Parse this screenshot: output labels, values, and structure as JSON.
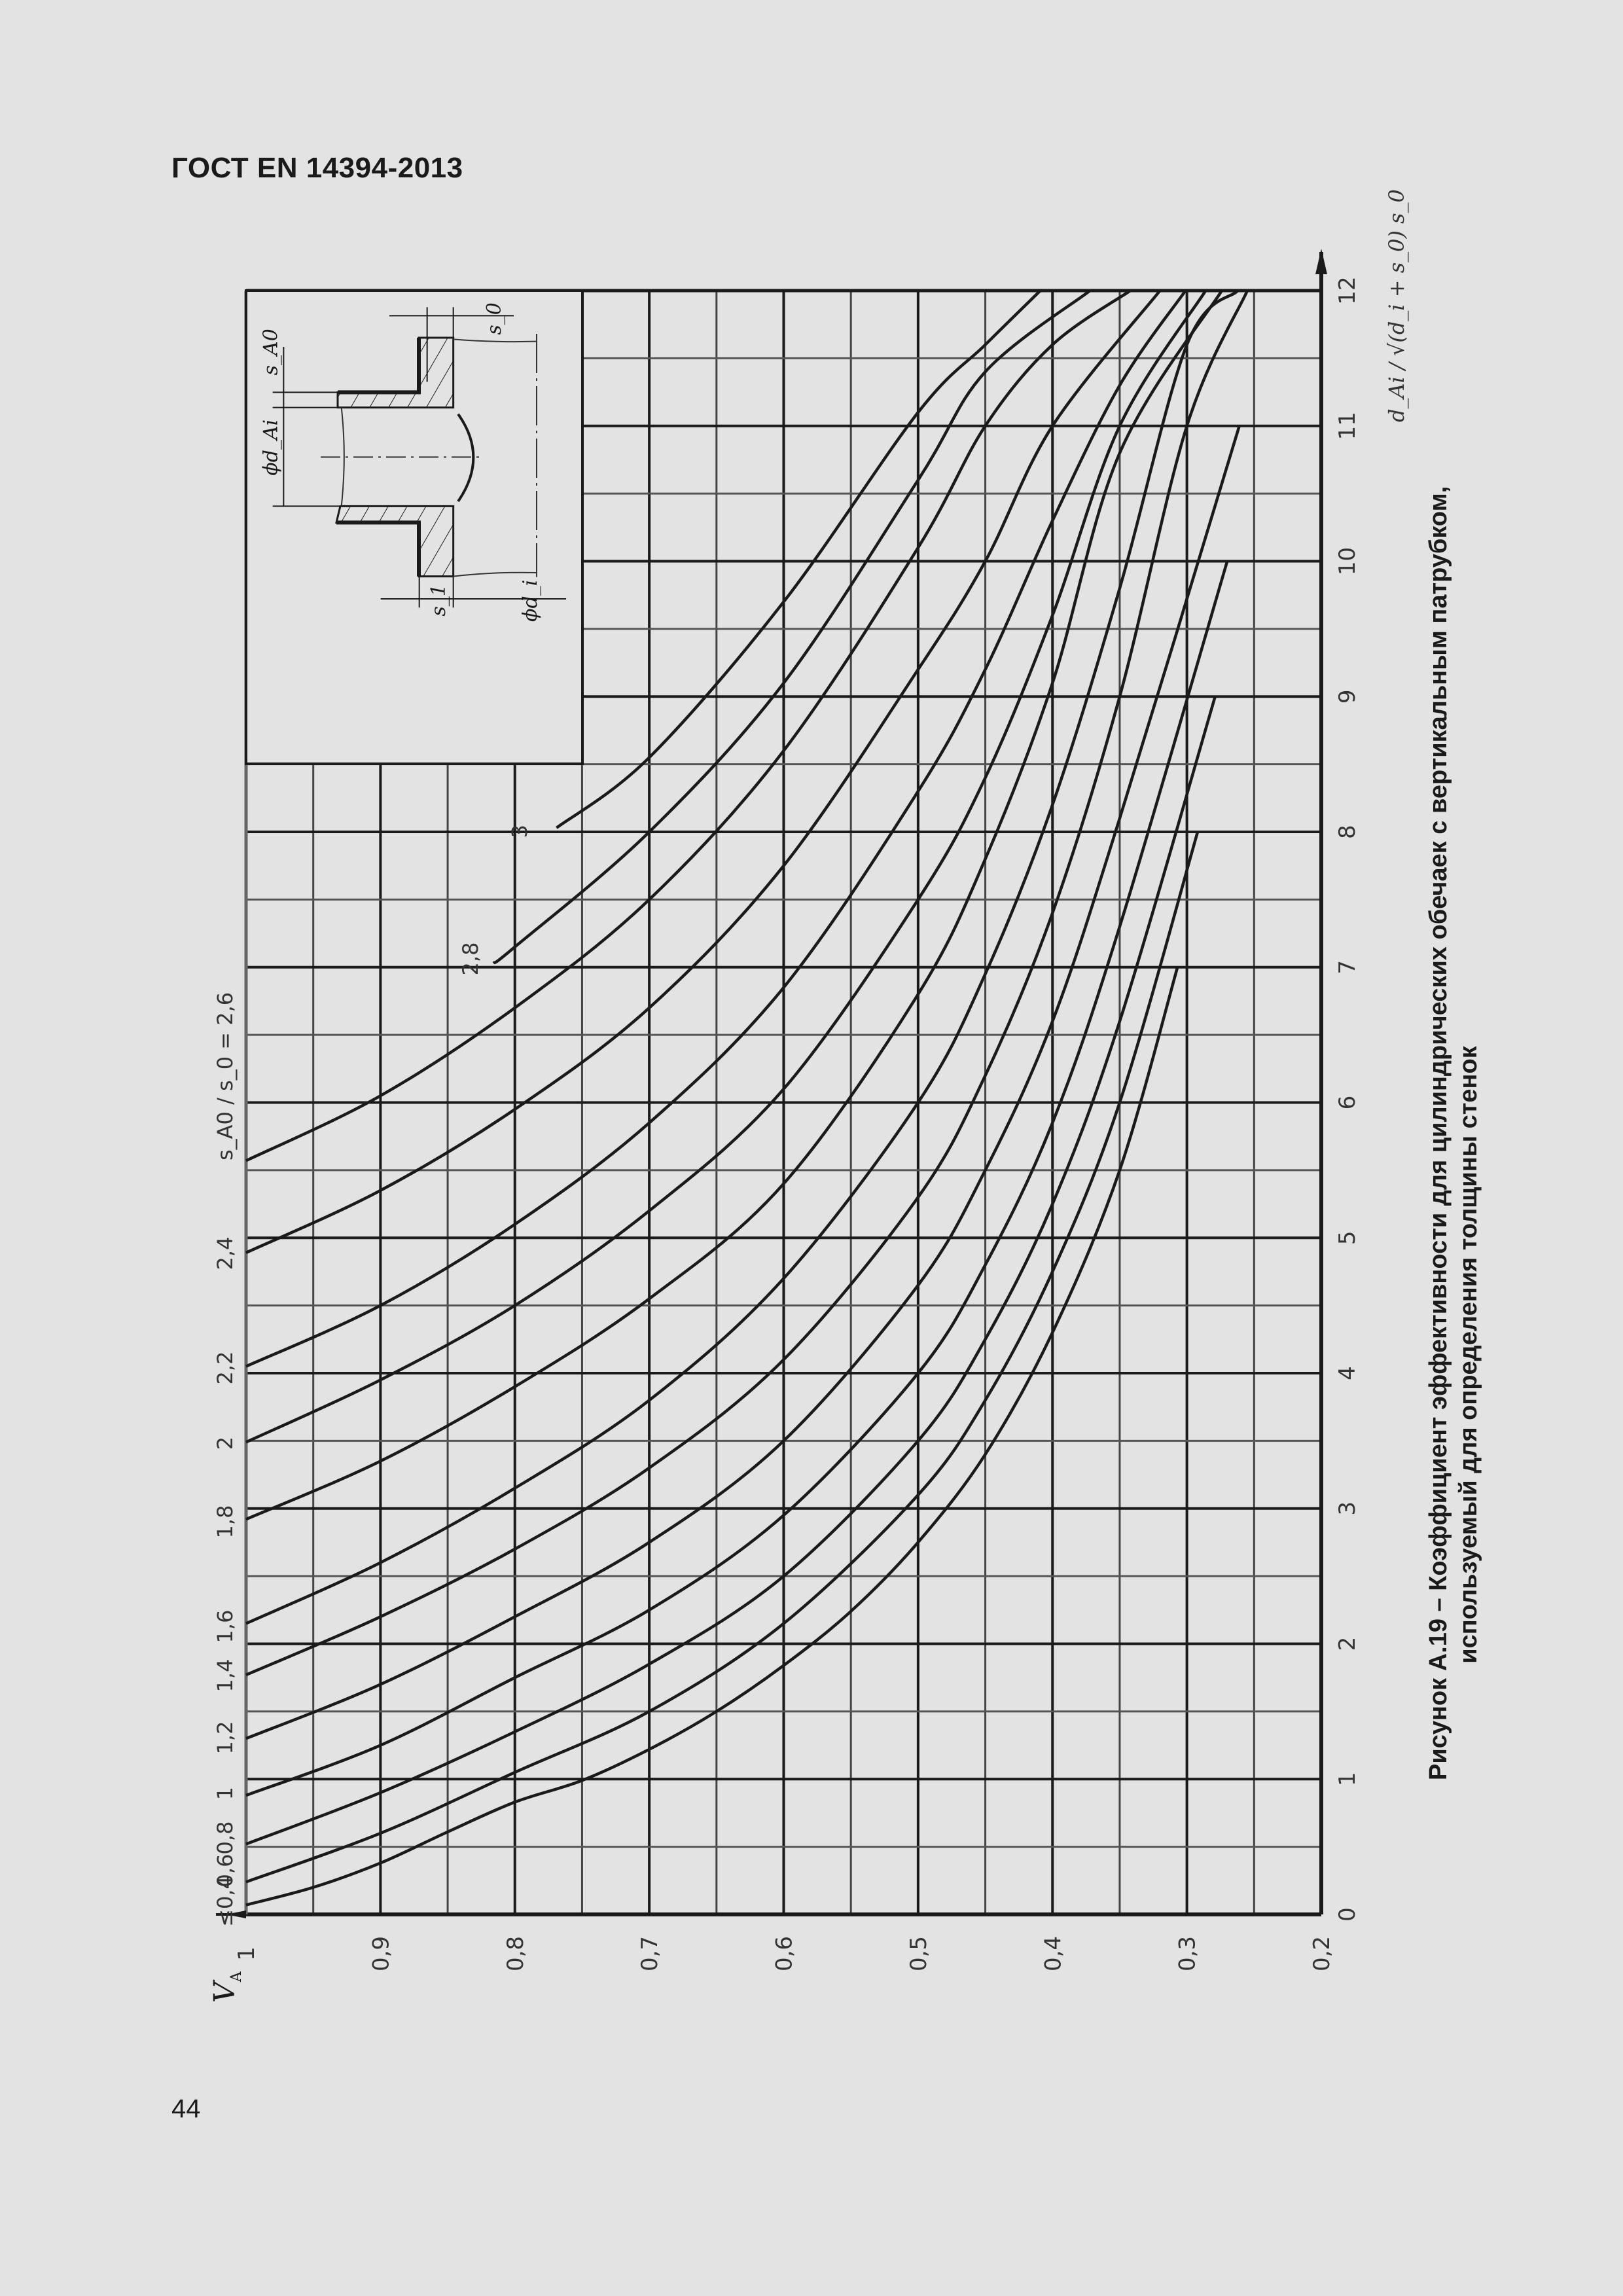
{
  "header": {
    "title": "ГОСТ EN 14394-2013"
  },
  "page": {
    "number": "44"
  },
  "caption": {
    "line1": "Рисунок А.19 – Коэффициент эффективности для цилиндрических обечаек с вертикальным патрубком,",
    "line2": "используемый для определения толщины стенок"
  },
  "axes": {
    "y_label": "V",
    "y_label_sub": "A",
    "x_label": "d_Ai / √(d_i + s_0) s_0",
    "curve_param_label": "s_A0 / s_0 = 2,6"
  },
  "inset": {
    "labels": {
      "s0": "s_0",
      "sA0": "s_A0",
      "dAi": "ϕd_Ai",
      "s1": "s_1",
      "di": "ϕd_i"
    }
  },
  "chart_data": {
    "type": "line",
    "title": "Рисунок А.19 – Коэффициент эффективности для цилиндрических обечаек с вертикальным патрубком, используемый для определения толщины стенок",
    "orientation": "rotated 90° on page: V_A axis runs horizontally along bottom (1 at left → 0,2 at right), d_Ai/√((d_i+s_0)s_0) runs vertically (0 at bottom → 12 at top)",
    "xlabel": "V_A",
    "ylabel": "d_Ai / √((d_i + s_0) s_0)",
    "xlim": [
      0.2,
      1.0
    ],
    "ylim": [
      0,
      12
    ],
    "x_ticks": [
      "1",
      "0,9",
      "0,8",
      "0,7",
      "0,6",
      "0,5",
      "0,4",
      "0,3",
      "0,2"
    ],
    "y_ticks": [
      "0",
      "1",
      "2",
      "3",
      "4",
      "5",
      "6",
      "7",
      "8",
      "9",
      "10",
      "11",
      "12"
    ],
    "grid": true,
    "legend": "curve labels s_A0/s_0 placed along V_A = 1 edge",
    "series": [
      {
        "name": "≤0,4",
        "points": [
          [
            1,
            0.07
          ],
          [
            0.95,
            0.2
          ],
          [
            0.9,
            0.38
          ],
          [
            0.85,
            0.61
          ],
          [
            0.8,
            0.83
          ],
          [
            0.75,
            0.99
          ],
          [
            0.7,
            1.22
          ],
          [
            0.65,
            1.5
          ],
          [
            0.6,
            1.84
          ],
          [
            0.55,
            2.24
          ],
          [
            0.5,
            2.75
          ],
          [
            0.45,
            3.4
          ],
          [
            0.4,
            4.3
          ],
          [
            0.35,
            5.5
          ],
          [
            0.307,
            7.0
          ]
        ]
      },
      {
        "name": "0,6",
        "points": [
          [
            1,
            0.24
          ],
          [
            0.9,
            0.6
          ],
          [
            0.8,
            1.05
          ],
          [
            0.7,
            1.5
          ],
          [
            0.6,
            2.15
          ],
          [
            0.5,
            3.1
          ],
          [
            0.45,
            3.8
          ],
          [
            0.4,
            4.75
          ],
          [
            0.35,
            6.0
          ],
          [
            0.292,
            8.0
          ]
        ]
      },
      {
        "name": "0,8",
        "points": [
          [
            1,
            0.52
          ],
          [
            0.9,
            0.9
          ],
          [
            0.8,
            1.35
          ],
          [
            0.7,
            1.85
          ],
          [
            0.6,
            2.5
          ],
          [
            0.5,
            3.5
          ],
          [
            0.45,
            4.25
          ],
          [
            0.4,
            5.25
          ],
          [
            0.35,
            6.6
          ],
          [
            0.279,
            9.0
          ]
        ]
      },
      {
        "name": "1",
        "points": [
          [
            1,
            0.88
          ],
          [
            0.9,
            1.25
          ],
          [
            0.8,
            1.75
          ],
          [
            0.7,
            2.25
          ],
          [
            0.6,
            2.95
          ],
          [
            0.5,
            4.0
          ],
          [
            0.45,
            4.8
          ],
          [
            0.4,
            5.85
          ],
          [
            0.35,
            7.3
          ],
          [
            0.27,
            10.0
          ]
        ]
      },
      {
        "name": "1,2",
        "points": [
          [
            1,
            1.3
          ],
          [
            0.9,
            1.7
          ],
          [
            0.8,
            2.2
          ],
          [
            0.7,
            2.75
          ],
          [
            0.6,
            3.5
          ],
          [
            0.5,
            4.65
          ],
          [
            0.45,
            5.5
          ],
          [
            0.4,
            6.6
          ],
          [
            0.35,
            8.1
          ],
          [
            0.261,
            11.0
          ]
        ]
      },
      {
        "name": "1,4",
        "points": [
          [
            1,
            1.77
          ],
          [
            0.9,
            2.2
          ],
          [
            0.8,
            2.7
          ],
          [
            0.7,
            3.3
          ],
          [
            0.6,
            4.1
          ],
          [
            0.5,
            5.3
          ],
          [
            0.45,
            6.2
          ],
          [
            0.4,
            7.4
          ],
          [
            0.35,
            9.0
          ],
          [
            0.3,
            11.0
          ],
          [
            0.255,
            12.0
          ]
        ]
      },
      {
        "name": "1,6",
        "points": [
          [
            1,
            2.15
          ],
          [
            0.9,
            2.6
          ],
          [
            0.8,
            3.15
          ],
          [
            0.7,
            3.8
          ],
          [
            0.6,
            4.7
          ],
          [
            0.5,
            6.0
          ],
          [
            0.45,
            6.95
          ],
          [
            0.4,
            8.2
          ],
          [
            0.35,
            9.8
          ],
          [
            0.3,
            11.6
          ],
          [
            0.262,
            12.0
          ]
        ]
      },
      {
        "name": "1,8",
        "points": [
          [
            1,
            2.92
          ],
          [
            0.9,
            3.35
          ],
          [
            0.8,
            3.9
          ],
          [
            0.7,
            4.55
          ],
          [
            0.6,
            5.4
          ],
          [
            0.5,
            6.8
          ],
          [
            0.45,
            7.8
          ],
          [
            0.4,
            9.1
          ],
          [
            0.35,
            10.8
          ],
          [
            0.274,
            12.0
          ]
        ]
      },
      {
        "name": "2",
        "points": [
          [
            1,
            3.49
          ],
          [
            0.9,
            3.95
          ],
          [
            0.8,
            4.5
          ],
          [
            0.7,
            5.2
          ],
          [
            0.6,
            6.1
          ],
          [
            0.5,
            7.5
          ],
          [
            0.45,
            8.4
          ],
          [
            0.4,
            9.6
          ],
          [
            0.35,
            11.0
          ],
          [
            0.286,
            12.0
          ]
        ]
      },
      {
        "name": "2,2",
        "points": [
          [
            1,
            4.05
          ],
          [
            0.9,
            4.5
          ],
          [
            0.8,
            5.1
          ],
          [
            0.7,
            5.85
          ],
          [
            0.6,
            6.85
          ],
          [
            0.5,
            8.3
          ],
          [
            0.45,
            9.2
          ],
          [
            0.4,
            10.3
          ],
          [
            0.35,
            11.3
          ],
          [
            0.301,
            12.0
          ]
        ]
      },
      {
        "name": "2,4",
        "points": [
          [
            1,
            4.89
          ],
          [
            0.9,
            5.35
          ],
          [
            0.8,
            5.95
          ],
          [
            0.7,
            6.7
          ],
          [
            0.6,
            7.75
          ],
          [
            0.5,
            9.2
          ],
          [
            0.45,
            10.0
          ],
          [
            0.4,
            11.0
          ],
          [
            0.32,
            12.0
          ]
        ]
      },
      {
        "name": "2,6",
        "points": [
          [
            1,
            5.57
          ],
          [
            0.9,
            6.05
          ],
          [
            0.8,
            6.7
          ],
          [
            0.7,
            7.5
          ],
          [
            0.6,
            8.6
          ],
          [
            0.5,
            10.1
          ],
          [
            0.45,
            11.0
          ],
          [
            0.4,
            11.6
          ],
          [
            0.342,
            12.0
          ]
        ]
      },
      {
        "name": "2,8",
        "points": [
          [
            0.816,
            7.03
          ],
          [
            0.8,
            7.15
          ],
          [
            0.7,
            8.0
          ],
          [
            0.6,
            9.1
          ],
          [
            0.5,
            10.6
          ],
          [
            0.45,
            11.4
          ],
          [
            0.372,
            12.0
          ]
        ]
      },
      {
        "name": "3",
        "points": [
          [
            0.769,
            8.03
          ],
          [
            0.7,
            8.55
          ],
          [
            0.6,
            9.7
          ],
          [
            0.5,
            11.1
          ],
          [
            0.45,
            11.6
          ],
          [
            0.409,
            12.0
          ]
        ]
      }
    ]
  }
}
